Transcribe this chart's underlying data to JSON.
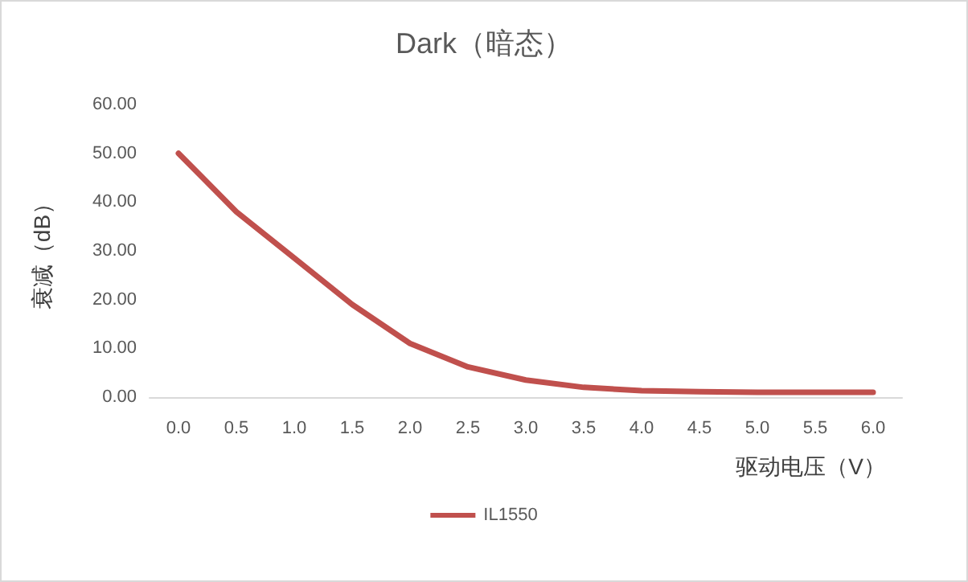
{
  "chart_data": {
    "type": "line",
    "title": "Dark（暗态）",
    "xlabel": "驱动电压（V）",
    "ylabel": "衰减（dB）",
    "categories": [
      "0.0",
      "0.5",
      "1.0",
      "1.5",
      "2.0",
      "2.5",
      "3.0",
      "3.5",
      "4.0",
      "4.5",
      "5.0",
      "5.5",
      "6.0"
    ],
    "series": [
      {
        "name": "IL1550",
        "color": "#c0504d",
        "values": [
          50,
          38,
          28.5,
          19,
          11,
          6.2,
          3.5,
          2,
          1.3,
          1.1,
          1,
          1,
          1
        ]
      }
    ],
    "ylim": [
      0,
      60
    ],
    "yticks": [
      {
        "value": 0,
        "label": "0.00"
      },
      {
        "value": 10,
        "label": "10.00"
      },
      {
        "value": 20,
        "label": "20.00"
      },
      {
        "value": 30,
        "label": "30.00"
      },
      {
        "value": 40,
        "label": "40.00"
      },
      {
        "value": 50,
        "label": "50.00"
      },
      {
        "value": 60,
        "label": "60.00"
      }
    ],
    "grid": false,
    "legend": "bottom",
    "marker": "none",
    "line_style": "solid"
  }
}
